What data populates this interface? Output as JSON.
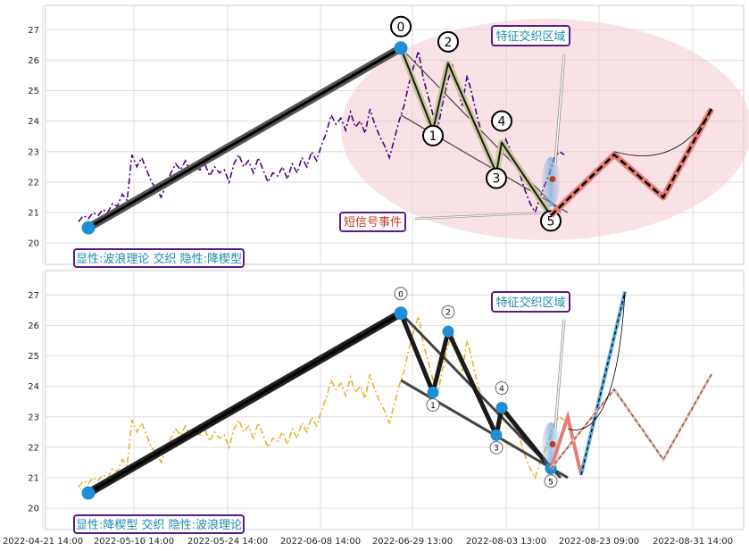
{
  "chart_data": [
    {
      "type": "line",
      "panel": "top",
      "ylim": [
        19.3,
        27.8
      ],
      "yticks": [
        "20",
        "21",
        "22",
        "23",
        "24",
        "25",
        "26",
        "27"
      ],
      "xticks": [
        "2022-04-21 14:00",
        "2022-05-10 14:00",
        "2022-05-24 14:00",
        "2022-06-08 14:00",
        "2022-06-29 13:00",
        "2022-08-03 13:00",
        "2022-08-23 09:00",
        "2022-08-31 14:00"
      ],
      "grid": true,
      "price_color": "#4b0082",
      "price_series": [
        20.7,
        20.9,
        20.8,
        21.0,
        20.9,
        21.1,
        21.0,
        21.3,
        21.2,
        21.6,
        21.4,
        22.9,
        22.5,
        22.8,
        22.4,
        22.0,
        21.8,
        21.5,
        21.9,
        22.3,
        22.6,
        22.4,
        22.7,
        22.3,
        22.5,
        22.4,
        22.6,
        22.2,
        22.5,
        22.3,
        22.4,
        22.0,
        22.6,
        22.9,
        22.5,
        22.7,
        22.3,
        22.8,
        22.4,
        22.0,
        22.3,
        22.2,
        22.5,
        22.1,
        22.6,
        22.3,
        22.8,
        22.5,
        23.0,
        22.7,
        23.2,
        23.6,
        24.2,
        23.9,
        24.1,
        23.7,
        24.3,
        23.8,
        24.0,
        23.6,
        24.4,
        23.9,
        23.5,
        23.2,
        22.8,
        23.4,
        24.0,
        24.5,
        25.2,
        25.8,
        26.3,
        25.4,
        24.8,
        24.2,
        23.8,
        24.6,
        25.3,
        25.8,
        25.1,
        24.5,
        25.5,
        24.9,
        24.2,
        23.6,
        23.1,
        22.6,
        22.2,
        22.8,
        23.4,
        23.0,
        22.6,
        22.2,
        21.7,
        21.3,
        21.0,
        21.5,
        21.9,
        22.3,
        22.8,
        23.0,
        22.9
      ],
      "wave_points": [
        {
          "label": "",
          "value": 20.5
        },
        {
          "label": "0",
          "value": 26.4
        },
        {
          "label": "1",
          "value": 23.7
        },
        {
          "label": "2",
          "value": 25.9
        },
        {
          "label": "3",
          "value": 22.3
        },
        {
          "label": "4",
          "value": 23.3
        },
        {
          "label": "5",
          "value": 20.9
        }
      ],
      "projection": [
        22.9,
        21.5,
        24.4
      ],
      "annotations": {
        "feature_zone": "特征交织区域",
        "short_signal": "短信号事件",
        "status": "显性:波浪理论 交织 隐性:降楔型"
      }
    },
    {
      "type": "line",
      "panel": "bottom",
      "ylim": [
        19.3,
        27.8
      ],
      "yticks": [
        "20",
        "21",
        "22",
        "23",
        "24",
        "25",
        "26",
        "27"
      ],
      "xticks": [
        "2022-04-21 14:00",
        "2022-05-10 14:00",
        "2022-05-24 14:00",
        "2022-06-08 14:00",
        "2022-06-29 13:00",
        "2022-08-03 13:00",
        "2022-08-23 09:00",
        "2022-08-31 14:00"
      ],
      "grid": true,
      "price_color": "#e8b030",
      "wave_points": [
        {
          "label": "",
          "value": 20.5
        },
        {
          "label": "0",
          "value": 26.4
        },
        {
          "label": "1",
          "value": 23.8
        },
        {
          "label": "2",
          "value": 25.8
        },
        {
          "label": "3",
          "value": 22.4
        },
        {
          "label": "4",
          "value": 23.3
        },
        {
          "label": "5",
          "value": 21.3
        }
      ],
      "projection": [
        23.0,
        21.1,
        27.1
      ],
      "annotations": {
        "feature_zone": "特征交织区域",
        "status": "显性:降楔型 交织 隐性:波浪理论"
      }
    }
  ]
}
